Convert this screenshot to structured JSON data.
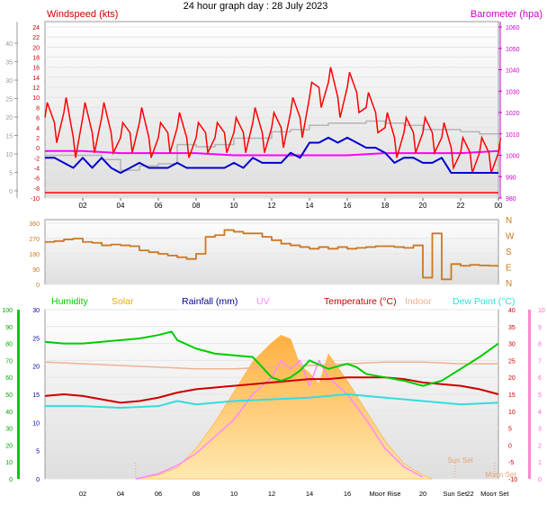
{
  "title": "24 hour graph day : 28 July 2023",
  "colors": {
    "wind": "#ff0000",
    "gust_gray": "#b4b4b4",
    "avg_wind": "#0000cc",
    "baro": "#ff00ff",
    "wind_dir": "#cc7722",
    "humidity": "#00cc00",
    "solar": "#ffb84d",
    "rainfall": "#000099",
    "uv": "#ff88ff",
    "temperature": "#cc0000",
    "indoor": "#f0b090",
    "dew": "#33dddd"
  },
  "chart_data": [
    {
      "type": "line",
      "name": "wind-baro",
      "title": "24 hour graph day : 28 July 2023",
      "left_title": "Windspeed (kts)",
      "right_title": "Barometer (hpa)",
      "x_ticks": [
        "02",
        "04",
        "06",
        "08",
        "10",
        "12",
        "14",
        "16",
        "18",
        "20",
        "22",
        "00"
      ],
      "y_left_outer_ticks": [
        "0",
        "5",
        "10",
        "15",
        "20",
        "25",
        "30",
        "35",
        "40"
      ],
      "y_left_inner_ticks": [
        "-10",
        "-8",
        "-6",
        "-4",
        "-2",
        "0",
        "2",
        "4",
        "6",
        "8",
        "10",
        "12",
        "14",
        "16",
        "18",
        "20",
        "22",
        "24"
      ],
      "y_right_ticks": [
        "980",
        "990",
        "1000",
        "1010",
        "1020",
        "1030",
        "1040",
        "1050",
        "1060"
      ],
      "y_left_inner_range": [
        -10,
        24
      ],
      "y_right_range": [
        980,
        1060
      ],
      "series": [
        {
          "role": "max",
          "x": [
            0,
            1,
            2,
            3,
            4,
            5,
            6,
            7,
            8,
            9,
            10,
            11,
            12,
            13,
            14,
            15,
            16,
            17,
            18,
            19,
            20,
            21,
            22,
            23,
            24
          ],
          "values": [
            0,
            0,
            0,
            0,
            0,
            0,
            0,
            0,
            0,
            0,
            0,
            0,
            0,
            0,
            0,
            0,
            0,
            0,
            0,
            0,
            0,
            0,
            0,
            0,
            0
          ]
        },
        {
          "role": "gust",
          "x": [
            0,
            0.5,
            1,
            1.5,
            2,
            2.5,
            3,
            3.5,
            4,
            4.5,
            5,
            5.5,
            6,
            6.5,
            7,
            7.5,
            8,
            8.5,
            9,
            9.5,
            10,
            10.5,
            11,
            11.5,
            12,
            12.5,
            13,
            13.5,
            14,
            14.5,
            15,
            15.5,
            16,
            16.5,
            17,
            17.5,
            18,
            18.5,
            19,
            19.5,
            20,
            20.5,
            21,
            21.5,
            22,
            22.5,
            23,
            23.5,
            24
          ],
          "values": [
            6,
            5,
            7,
            2,
            6,
            3,
            6,
            3,
            2,
            3,
            5,
            2,
            2,
            3,
            4,
            2,
            2,
            3,
            2,
            3,
            3,
            3,
            5,
            3,
            4,
            4,
            7,
            6,
            10,
            12,
            13,
            10,
            12,
            11,
            8,
            7,
            4,
            2,
            3,
            3,
            3,
            3,
            2,
            0,
            -1,
            -1,
            -1,
            -1,
            -1
          ]
        },
        {
          "role": "wind",
          "x": [
            0,
            0.5,
            1,
            1.5,
            2,
            2.5,
            3,
            3.5,
            4,
            4.5,
            5,
            5.5,
            6,
            6.5,
            7,
            7.5,
            8,
            8.5,
            9,
            9.5,
            10,
            10.5,
            11,
            11.5,
            12,
            12.5,
            13,
            13.5,
            14,
            14.5,
            15,
            15.5,
            16,
            16.5,
            17,
            17.5,
            18,
            18.5,
            19,
            19.5,
            20,
            20.5,
            21,
            21.5,
            22,
            22.5,
            23,
            23.5,
            24
          ],
          "values": [
            -2,
            -2,
            -3,
            -4,
            -2,
            -4,
            -2,
            -4,
            -5,
            -4,
            -3,
            -4,
            -4,
            -4,
            -3,
            -4,
            -4,
            -4,
            -4,
            -4,
            -3,
            -4,
            -2,
            -3,
            -3,
            -3,
            -1,
            -2,
            1,
            1,
            2,
            1,
            2,
            1,
            0,
            0,
            -1,
            -3,
            -2,
            -2,
            -3,
            -3,
            -2,
            -5,
            -5,
            -5,
            -5,
            -5,
            -5
          ]
        },
        {
          "role": "barometer",
          "x": [
            0,
            2,
            4,
            6,
            7,
            8,
            10,
            12,
            14,
            16,
            18,
            20,
            22,
            24
          ],
          "values": [
            1002,
            1002,
            1001,
            1001,
            1001,
            1001,
            1000,
            1000,
            1000,
            1000,
            1001,
            1001,
            1001,
            1002
          ]
        },
        {
          "role": "baro_history",
          "x": [
            0,
            2,
            3,
            4,
            5,
            6,
            7,
            8,
            9,
            10,
            11,
            12,
            13,
            14,
            15,
            16,
            17,
            18,
            19,
            20,
            21,
            22,
            23,
            24
          ],
          "values": [
            1000,
            1000,
            998,
            993,
            995,
            996,
            1005,
            1004,
            1005,
            1008,
            1008,
            1011,
            1012,
            1014,
            1015,
            1015,
            1016,
            1015,
            1014,
            1012,
            1012,
            1011,
            1010,
            1008
          ]
        }
      ]
    },
    {
      "type": "line",
      "name": "wind-direction",
      "y_left_ticks": [
        "0",
        "90",
        "180",
        "270",
        "360"
      ],
      "y_right_ticks": [
        "N",
        "E",
        "S",
        "W",
        "N"
      ],
      "y_range": [
        0,
        360
      ],
      "series": [
        {
          "role": "direction",
          "x": [
            0,
            0.5,
            1,
            1.5,
            2,
            2.5,
            3,
            3.5,
            4,
            4.5,
            5,
            5.5,
            6,
            6.5,
            7,
            7.5,
            8,
            8.5,
            9,
            9.5,
            10,
            10.5,
            11,
            11.5,
            12,
            12.5,
            13,
            13.5,
            14,
            14.5,
            15,
            15.5,
            16,
            16.5,
            17,
            17.5,
            18,
            18.5,
            19,
            19.5,
            20,
            20.5,
            21,
            21.5,
            22,
            22.5,
            23,
            23.5,
            24
          ],
          "values": [
            250,
            255,
            265,
            270,
            250,
            245,
            230,
            235,
            230,
            225,
            200,
            190,
            180,
            170,
            160,
            150,
            180,
            280,
            290,
            320,
            310,
            300,
            300,
            280,
            260,
            240,
            230,
            220,
            210,
            220,
            210,
            220,
            210,
            215,
            220,
            225,
            225,
            220,
            215,
            230,
            40,
            300,
            30,
            120,
            110,
            115,
            112,
            110,
            110
          ]
        }
      ]
    },
    {
      "type": "line",
      "name": "temp-humidity-solar",
      "legend": [
        "Humidity",
        "Solar",
        "Rainfall (mm)",
        "UV",
        "Temperature (°C)",
        "Indoor",
        "Dew Point (°C)"
      ],
      "x_ticks": [
        "02",
        "04",
        "06",
        "08",
        "10",
        "12",
        "14",
        "16",
        "MoonRise",
        "20",
        "Sun Set",
        "22",
        "MoonSet"
      ],
      "x_tick_display": [
        "02",
        "04",
        "06",
        "08",
        "10",
        "12",
        "14",
        "16",
        "Mooт Rise",
        "20",
        "Sun Set",
        "22",
        "Mooт Set"
      ],
      "markers": [
        "Sun Set",
        "Moon Set"
      ],
      "y_humidity_ticks": [
        "0",
        "10",
        "20",
        "30",
        "40",
        "50",
        "60",
        "70",
        "80",
        "90",
        "100"
      ],
      "y_rain_ticks": [
        "0",
        "5",
        "10",
        "15",
        "20",
        "25",
        "30"
      ],
      "y_temp_ticks": [
        "-10",
        "-5",
        "0",
        "5",
        "10",
        "15",
        "20",
        "25",
        "30",
        "35",
        "40"
      ],
      "y_uv_ticks": [
        "0",
        "1",
        "2",
        "3",
        "4",
        "5",
        "6",
        "7",
        "8",
        "9",
        "10"
      ],
      "series": [
        {
          "role": "humidity",
          "x": [
            0,
            1,
            2,
            3,
            4,
            5,
            6,
            6.7,
            7,
            8,
            9,
            10,
            11,
            12,
            12.5,
            13,
            13.5,
            14,
            15,
            16,
            16.5,
            17,
            17.5,
            18,
            19,
            20,
            21,
            22,
            23,
            24
          ],
          "values": [
            81,
            80,
            80,
            81,
            82,
            83,
            85,
            87,
            82,
            77,
            74,
            73,
            72,
            60,
            58,
            60,
            64,
            70,
            65,
            68,
            66,
            62,
            61,
            60,
            58,
            55,
            58,
            65,
            72,
            80
          ]
        },
        {
          "role": "temperature",
          "x": [
            0,
            1,
            2,
            3,
            4,
            5,
            6,
            7,
            8,
            9,
            10,
            11,
            12,
            13,
            14,
            15,
            16,
            17,
            18,
            19,
            20,
            21,
            22,
            23,
            24
          ],
          "values": [
            14.5,
            15,
            14.5,
            13.5,
            12.5,
            13,
            14,
            15.5,
            16.5,
            17,
            17.5,
            18,
            18.5,
            19,
            19.5,
            19.5,
            20,
            20,
            20,
            19.5,
            18.5,
            18,
            17.5,
            16.5,
            15
          ]
        },
        {
          "role": "indoor",
          "x": [
            0,
            2,
            4,
            6,
            8,
            10,
            12,
            14,
            16,
            18,
            20,
            22,
            24
          ],
          "values": [
            24.5,
            24,
            23.5,
            23,
            22.5,
            22.5,
            23,
            23.5,
            24,
            24.5,
            24.5,
            24,
            24
          ]
        },
        {
          "role": "dew",
          "x": [
            0,
            2,
            4,
            6,
            7,
            8,
            10,
            12,
            14,
            16,
            18,
            20,
            22,
            24
          ],
          "values": [
            11.5,
            11.5,
            11,
            11.5,
            13,
            12,
            13,
            13.5,
            14,
            15,
            14,
            13,
            12,
            12.5
          ]
        },
        {
          "role": "solar",
          "x": [
            4.8,
            6,
            7,
            8,
            9,
            10,
            11,
            12,
            12.5,
            13,
            13.5,
            14,
            14.5,
            15,
            16,
            17,
            18,
            19,
            20,
            20.5
          ],
          "values": [
            0,
            10,
            30,
            80,
            150,
            230,
            310,
            360,
            380,
            370,
            300,
            280,
            250,
            330,
            260,
            180,
            100,
            40,
            10,
            0
          ]
        },
        {
          "role": "uv",
          "x": [
            4.8,
            6,
            7,
            8,
            9,
            10,
            11,
            12,
            12.5,
            13,
            13.5,
            14,
            14.5,
            15,
            16,
            17,
            18,
            19,
            20
          ],
          "values": [
            0,
            0.3,
            0.8,
            1.5,
            2.5,
            3.5,
            5,
            6,
            7,
            6.5,
            7,
            5.5,
            7,
            6,
            5,
            3.5,
            1.8,
            0.7,
            0.1
          ]
        }
      ]
    }
  ]
}
